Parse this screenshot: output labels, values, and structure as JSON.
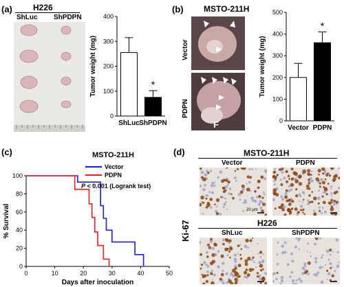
{
  "panel_a": {
    "label": "(a)",
    "title": "H226",
    "groups": [
      "ShLuc",
      "ShPDPN"
    ]
  },
  "panel_b": {
    "label": "(b)",
    "title": "MSTO-211H",
    "row_labels": [
      "Vector",
      "PDPN"
    ],
    "photo_letter": "F"
  },
  "panel_c": {
    "label": "(c)",
    "title": "MSTO-211H",
    "stat": "P < 0.001 (Logrank test)",
    "stat_p": "P"
  },
  "panel_d": {
    "label": "(d)",
    "row_label": "Ki-67",
    "top_title": "MSTO-211H",
    "top_cols": [
      "Vector",
      "PDPN"
    ],
    "bottom_title": "H226",
    "bottom_cols": [
      "ShLuc",
      "ShPDPN"
    ],
    "scale_bar": "20 μm"
  },
  "colors": {
    "vector_line": "#1a1aff",
    "pdpn_line": "#ff1a1a",
    "stain_brown": "#8b4513",
    "hema_blue": "#9aa0c8"
  },
  "chart_data": [
    {
      "id": "a",
      "type": "bar",
      "categories": [
        "ShLuc",
        "ShPDPN"
      ],
      "values": [
        255,
        75
      ],
      "errors": [
        60,
        27
      ],
      "fills": [
        "#ffffff",
        "#000000"
      ],
      "significance": [
        "",
        "*"
      ],
      "ylabel": "Tumor weight (mg)",
      "ylim": [
        0,
        400
      ],
      "yticks": [
        0,
        100,
        200,
        300,
        400
      ]
    },
    {
      "id": "b",
      "type": "bar",
      "categories": [
        "Vector",
        "PDPN"
      ],
      "values": [
        200,
        360
      ],
      "errors": [
        65,
        50
      ],
      "fills": [
        "#ffffff",
        "#000000"
      ],
      "significance": [
        "",
        "*"
      ],
      "ylabel": "Tumor weight (mg)",
      "ylim": [
        0,
        500
      ],
      "yticks": [
        0,
        100,
        200,
        300,
        400,
        500
      ]
    },
    {
      "id": "c",
      "type": "line",
      "xlabel": "Days after inoculation",
      "ylabel": "% Survival",
      "xlim": [
        0,
        50
      ],
      "ylim": [
        0,
        100
      ],
      "xticks": [
        0,
        10,
        20,
        30,
        40,
        50
      ],
      "yticks": [
        0,
        20,
        40,
        60,
        80,
        100
      ],
      "series": [
        {
          "name": "Vector",
          "color": "#1a1aff",
          "steps": [
            [
              0,
              100
            ],
            [
              18,
              100
            ],
            [
              18,
              93
            ],
            [
              26,
              93
            ],
            [
              26,
              67
            ],
            [
              27,
              67
            ],
            [
              27,
              53
            ],
            [
              28,
              53
            ],
            [
              28,
              40
            ],
            [
              30,
              40
            ],
            [
              30,
              27
            ],
            [
              38,
              27
            ],
            [
              38,
              13
            ],
            [
              41,
              13
            ],
            [
              41,
              0
            ]
          ]
        },
        {
          "name": "PDPN",
          "color": "#ff1a1a",
          "steps": [
            [
              0,
              100
            ],
            [
              17,
              100
            ],
            [
              17,
              85
            ],
            [
              22,
              85
            ],
            [
              22,
              69
            ],
            [
              23,
              69
            ],
            [
              23,
              54
            ],
            [
              24,
              54
            ],
            [
              24,
              38
            ],
            [
              25,
              38
            ],
            [
              25,
              23
            ],
            [
              27,
              23
            ],
            [
              27,
              8
            ],
            [
              29,
              8
            ],
            [
              29,
              0
            ]
          ]
        }
      ]
    }
  ]
}
